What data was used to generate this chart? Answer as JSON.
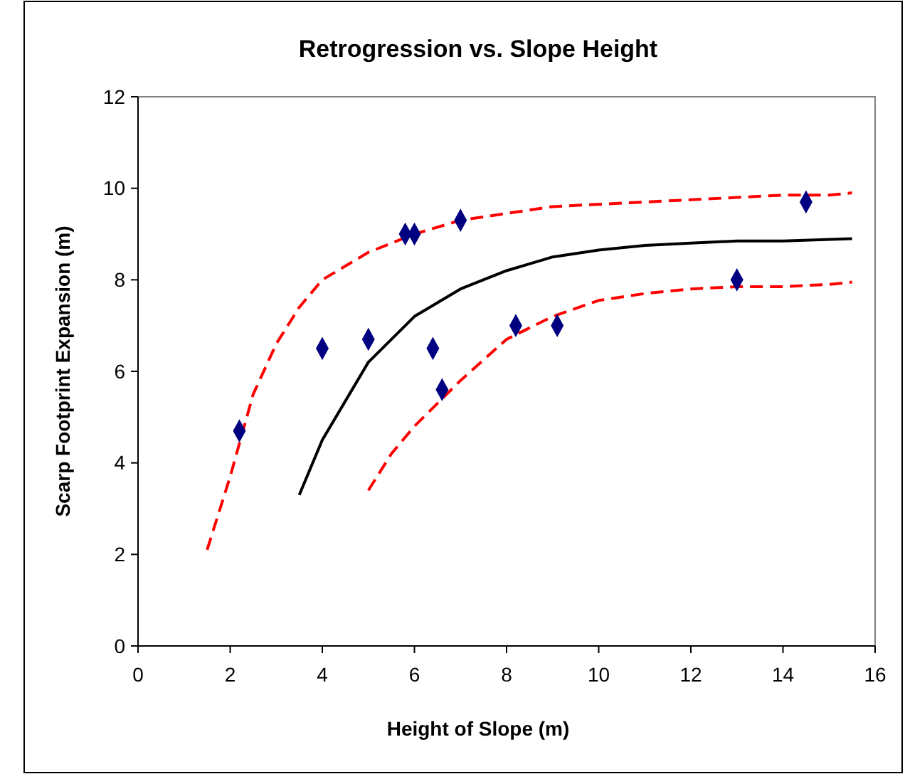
{
  "chart_data": {
    "type": "scatter",
    "title": "Retrogression vs. Slope Height",
    "xlabel": "Height of Slope (m)",
    "ylabel": "Scarp Footprint Expansion (m)",
    "xlim": [
      0,
      16
    ],
    "xticks": [
      0,
      2,
      4,
      6,
      8,
      10,
      12,
      14,
      16
    ],
    "ylim": [
      0,
      12
    ],
    "yticks": [
      0,
      2,
      4,
      6,
      8,
      10,
      12
    ],
    "grid": false,
    "series": [
      {
        "marker": "diamond",
        "color": "#000080",
        "x": [
          2.2,
          4,
          5,
          5.8,
          6,
          6.4,
          6.6,
          7,
          8.2,
          9.1,
          13,
          14.5
        ],
        "values": [
          4.7,
          6.5,
          6.7,
          9,
          9,
          6.5,
          5.6,
          9.3,
          7,
          7,
          8,
          9.7
        ]
      },
      {
        "type": "line",
        "line_style": "solid",
        "color": "#000000",
        "x": [
          3.5,
          4,
          5,
          6,
          7,
          8,
          9,
          10,
          11,
          12,
          13,
          14,
          15.5
        ],
        "values": [
          3.3,
          4.5,
          6.2,
          7.2,
          7.8,
          8.2,
          8.5,
          8.65,
          8.75,
          8.8,
          8.85,
          8.85,
          8.9
        ]
      },
      {
        "type": "line",
        "line_style": "dashed",
        "color": "#ff0000",
        "x": [
          1.5,
          2,
          2.5,
          3,
          3.5,
          4,
          5,
          6,
          7,
          8,
          9,
          10,
          11,
          12,
          13,
          14,
          15,
          15.5
        ],
        "values": [
          2.1,
          3.7,
          5.5,
          6.6,
          7.4,
          8.0,
          8.6,
          9.0,
          9.3,
          9.45,
          9.6,
          9.65,
          9.7,
          9.75,
          9.8,
          9.85,
          9.85,
          9.9
        ]
      },
      {
        "type": "line",
        "line_style": "dashed",
        "color": "#ff0000",
        "x": [
          5,
          5.5,
          6,
          7,
          8,
          9,
          10,
          11,
          12,
          13,
          14,
          15,
          15.5
        ],
        "values": [
          3.4,
          4.2,
          4.8,
          5.8,
          6.7,
          7.2,
          7.55,
          7.7,
          7.8,
          7.85,
          7.85,
          7.9,
          7.95
        ]
      }
    ]
  }
}
